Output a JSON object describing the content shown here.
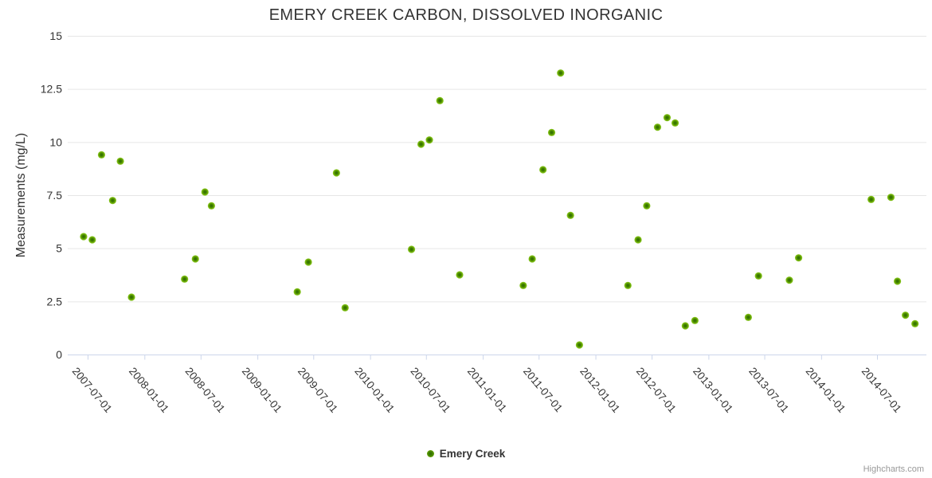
{
  "chart": {
    "title": "EMERY CREEK CARBON, DISSOLVED INORGANIC",
    "credits_label": "Highcharts.com",
    "legend": {
      "label": "Emery Creek"
    }
  },
  "colors": {
    "title_text": "#333333",
    "axis_label_text": "#333333",
    "axis_line": "#ccd6eb",
    "gridline": "#e6e6e6",
    "marker_outer": "#8fcb2f",
    "marker_mid": "#74b40a",
    "marker_core": "#2b6a00",
    "credits_text": "#999999",
    "background": "#ffffff"
  },
  "chart_data": {
    "type": "scatter",
    "title": "EMERY CREEK CARBON, DISSOLVED INORGANIC",
    "xlabel": "",
    "ylabel": "Measurements (mg/L)",
    "ylim": [
      0,
      15
    ],
    "y_ticks": [
      0,
      2.5,
      5,
      7.5,
      10,
      12.5,
      15
    ],
    "y_tick_labels": [
      "0",
      "2.5",
      "5",
      "7.5",
      "10",
      "12.5",
      "15"
    ],
    "xlim": [
      "2007-04-27",
      "2014-12-07"
    ],
    "x_ticks": [
      "2007-07-01",
      "2008-01-01",
      "2008-07-01",
      "2009-01-01",
      "2009-07-01",
      "2010-01-01",
      "2010-07-01",
      "2011-01-01",
      "2011-07-01",
      "2012-01-01",
      "2012-07-01",
      "2013-01-01",
      "2013-07-01",
      "2014-01-01",
      "2014-07-01"
    ],
    "grid": "horizontal-only",
    "legend_position": "bottom-center",
    "series": [
      {
        "name": "Emery Creek",
        "points": [
          {
            "date": "2007-06-18",
            "value": 5.55
          },
          {
            "date": "2007-07-16",
            "value": 5.4
          },
          {
            "date": "2007-08-15",
            "value": 9.4
          },
          {
            "date": "2007-09-20",
            "value": 7.25
          },
          {
            "date": "2007-10-15",
            "value": 9.1
          },
          {
            "date": "2007-11-20",
            "value": 2.7
          },
          {
            "date": "2008-05-10",
            "value": 3.55
          },
          {
            "date": "2008-06-14",
            "value": 4.5
          },
          {
            "date": "2008-07-15",
            "value": 7.65
          },
          {
            "date": "2008-08-05",
            "value": 7.0
          },
          {
            "date": "2009-05-10",
            "value": 2.95
          },
          {
            "date": "2009-06-15",
            "value": 4.35
          },
          {
            "date": "2009-09-14",
            "value": 8.55
          },
          {
            "date": "2009-10-12",
            "value": 2.2
          },
          {
            "date": "2010-05-15",
            "value": 4.95
          },
          {
            "date": "2010-06-15",
            "value": 9.9
          },
          {
            "date": "2010-07-12",
            "value": 10.1
          },
          {
            "date": "2010-08-15",
            "value": 11.95
          },
          {
            "date": "2010-10-18",
            "value": 3.75
          },
          {
            "date": "2011-05-12",
            "value": 3.25
          },
          {
            "date": "2011-06-10",
            "value": 4.5
          },
          {
            "date": "2011-07-15",
            "value": 8.7
          },
          {
            "date": "2011-08-12",
            "value": 10.45
          },
          {
            "date": "2011-09-10",
            "value": 13.25
          },
          {
            "date": "2011-10-12",
            "value": 6.55
          },
          {
            "date": "2011-11-10",
            "value": 0.45
          },
          {
            "date": "2012-04-15",
            "value": 3.25
          },
          {
            "date": "2012-05-18",
            "value": 5.4
          },
          {
            "date": "2012-06-15",
            "value": 7.0
          },
          {
            "date": "2012-07-20",
            "value": 10.7
          },
          {
            "date": "2012-08-20",
            "value": 11.15
          },
          {
            "date": "2012-09-15",
            "value": 10.9
          },
          {
            "date": "2012-10-18",
            "value": 1.35
          },
          {
            "date": "2012-11-18",
            "value": 1.6
          },
          {
            "date": "2013-05-10",
            "value": 1.75
          },
          {
            "date": "2013-06-12",
            "value": 3.7
          },
          {
            "date": "2013-09-20",
            "value": 3.5
          },
          {
            "date": "2013-10-20",
            "value": 4.55
          },
          {
            "date": "2014-06-12",
            "value": 7.3
          },
          {
            "date": "2014-08-15",
            "value": 7.4
          },
          {
            "date": "2014-09-05",
            "value": 3.45
          },
          {
            "date": "2014-10-01",
            "value": 1.85
          },
          {
            "date": "2014-11-01",
            "value": 1.45
          }
        ]
      }
    ]
  }
}
